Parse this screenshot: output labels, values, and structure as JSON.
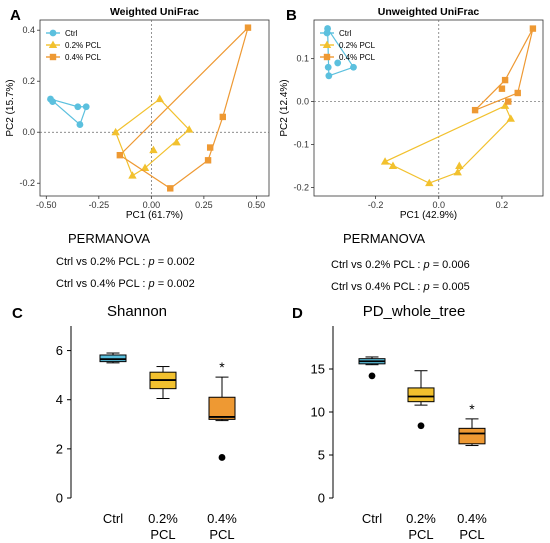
{
  "colors": {
    "Ctrl": "#5bc0de",
    "0.2% PCL": "#f2c12e",
    "0.4% PCL": "#ee9933"
  },
  "chart_data": [
    {
      "panel": "A",
      "type": "scatter",
      "title": "Weighted UniFrac",
      "xlabel": "PC1 (61.7%)",
      "ylabel": "PC2 (15.7%)",
      "xlim": [
        -0.53,
        0.56
      ],
      "ylim": [
        -0.25,
        0.44
      ],
      "xticks": [
        -0.5,
        -0.25,
        0.0,
        0.25,
        0.5
      ],
      "xtick_labels": [
        "-0.50",
        "-0.25",
        "0.00",
        "0.25",
        "0.50"
      ],
      "yticks": [
        -0.2,
        0.0,
        0.2,
        0.4
      ],
      "ytick_labels": [
        "-0.2",
        "0.0",
        "0.2",
        "0.4"
      ],
      "legend": {
        "position": "top-left",
        "entries": [
          "Ctrl",
          "0.2% PCL",
          "0.4% PCL"
        ]
      },
      "series": [
        {
          "name": "Ctrl",
          "marker": "circle",
          "points": [
            [
              -0.48,
              0.13
            ],
            [
              -0.47,
              0.12
            ],
            [
              -0.35,
              0.1
            ],
            [
              -0.31,
              0.1
            ],
            [
              -0.34,
              0.03
            ]
          ],
          "hull": [
            0,
            2,
            3,
            4
          ]
        },
        {
          "name": "0.2% PCL",
          "marker": "triangle",
          "points": [
            [
              -0.17,
              0.0
            ],
            [
              0.04,
              0.13
            ],
            [
              0.18,
              0.01
            ],
            [
              0.12,
              -0.04
            ],
            [
              0.01,
              -0.07
            ],
            [
              -0.03,
              -0.14
            ],
            [
              -0.09,
              -0.17
            ]
          ],
          "hull": [
            0,
            1,
            2,
            5,
            6
          ]
        },
        {
          "name": "0.4% PCL",
          "marker": "square",
          "points": [
            [
              -0.15,
              -0.09
            ],
            [
              0.46,
              0.41
            ],
            [
              0.34,
              0.06
            ],
            [
              0.28,
              -0.06
            ],
            [
              0.27,
              -0.11
            ],
            [
              0.09,
              -0.22
            ]
          ],
          "hull": [
            0,
            1,
            2,
            4,
            5
          ]
        }
      ],
      "stats_title": "PERMANOVA",
      "stats": [
        {
          "text": "Ctrl vs 0.2% PCL : ",
          "p_label": "p",
          "value": " = 0.002"
        },
        {
          "text": "Ctrl vs 0.4% PCL : ",
          "p_label": "p",
          "value": " = 0.002"
        }
      ]
    },
    {
      "panel": "B",
      "type": "scatter",
      "title": "Unweighted UniFrac",
      "xlabel": "PC1 (42.9%)",
      "ylabel": "PC2 (12.4%)",
      "xlim": [
        -0.395,
        0.33
      ],
      "ylim": [
        -0.22,
        0.19
      ],
      "xticks": [
        -0.2,
        0.0,
        0.2
      ],
      "xtick_labels": [
        "-0.2",
        "0.0",
        "0.2"
      ],
      "yticks": [
        -0.2,
        -0.1,
        0.0,
        0.1
      ],
      "ytick_labels": [
        "-0.2",
        "-0.1",
        "0.0",
        "0.1"
      ],
      "legend": {
        "position": "top-left",
        "entries": [
          "Ctrl",
          "0.2% PCL",
          "0.4% PCL"
        ]
      },
      "series": [
        {
          "name": "Ctrl",
          "marker": "circle",
          "points": [
            [
              -0.352,
              0.17
            ],
            [
              -0.32,
              0.09
            ],
            [
              -0.35,
              0.08
            ],
            [
              -0.27,
              0.08
            ],
            [
              -0.348,
              0.06
            ]
          ],
          "hull": [
            0,
            3,
            4
          ]
        },
        {
          "name": "0.2% PCL",
          "marker": "triangle",
          "points": [
            [
              -0.17,
              -0.14
            ],
            [
              -0.145,
              -0.15
            ],
            [
              -0.03,
              -0.19
            ],
            [
              0.065,
              -0.15
            ],
            [
              0.06,
              -0.165
            ],
            [
              0.21,
              -0.01
            ],
            [
              0.228,
              -0.04
            ]
          ],
          "hull": [
            0,
            2,
            4,
            6,
            5
          ]
        },
        {
          "name": "0.4% PCL",
          "marker": "square",
          "points": [
            [
              0.298,
              0.17
            ],
            [
              0.21,
              0.05
            ],
            [
              0.2,
              0.03
            ],
            [
              0.25,
              0.02
            ],
            [
              0.22,
              0.0
            ],
            [
              0.115,
              -0.02
            ]
          ],
          "hull": [
            0,
            3,
            5,
            1
          ]
        }
      ],
      "stats_title": "PERMANOVA",
      "stats": [
        {
          "text": "Ctrl vs 0.2% PCL : ",
          "p_label": "p",
          "value": " = 0.006"
        },
        {
          "text": "Ctrl vs 0.4% PCL : ",
          "p_label": "p",
          "value": " = 0.005"
        }
      ]
    },
    {
      "panel": "C",
      "type": "box",
      "title": "Shannon",
      "ylim": [
        0,
        7
      ],
      "yticks": [
        0,
        2,
        4,
        6
      ],
      "ytick_labels": [
        "0",
        "2",
        "4",
        "6"
      ],
      "categories": [
        [
          "Ctrl"
        ],
        [
          "0.2%",
          "PCL"
        ],
        [
          "0.4%",
          "PCL"
        ]
      ],
      "boxes": [
        {
          "group": "Ctrl",
          "whisker_low": 5.5,
          "q1": 5.55,
          "median": 5.65,
          "q3": 5.82,
          "whisker_high": 5.9,
          "outliers": [],
          "annotation": ""
        },
        {
          "group": "0.2% PCL",
          "whisker_low": 4.05,
          "q1": 4.45,
          "median": 4.8,
          "q3": 5.12,
          "whisker_high": 5.35,
          "outliers": [],
          "annotation": ""
        },
        {
          "group": "0.4% PCL",
          "whisker_low": 3.15,
          "q1": 3.2,
          "median": 3.3,
          "q3": 4.1,
          "whisker_high": 4.92,
          "outliers": [
            1.65
          ],
          "annotation": "*"
        }
      ]
    },
    {
      "panel": "D",
      "type": "box",
      "title": "PD_whole_tree",
      "ylim": [
        0,
        20
      ],
      "yticks": [
        0,
        5,
        10,
        15
      ],
      "ytick_labels": [
        "0",
        "5",
        "10",
        "15"
      ],
      "categories": [
        [
          "Ctrl"
        ],
        [
          "0.2%",
          "PCL"
        ],
        [
          "0.4%",
          "PCL"
        ]
      ],
      "boxes": [
        {
          "group": "Ctrl",
          "whisker_low": 15.5,
          "q1": 15.6,
          "median": 15.9,
          "q3": 16.2,
          "whisker_high": 16.4,
          "outliers": [
            14.2
          ],
          "annotation": ""
        },
        {
          "group": "0.2% PCL",
          "whisker_low": 10.8,
          "q1": 11.2,
          "median": 11.8,
          "q3": 12.8,
          "whisker_high": 14.8,
          "outliers": [
            8.4
          ],
          "annotation": ""
        },
        {
          "group": "0.4% PCL",
          "whisker_low": 6.1,
          "q1": 6.3,
          "median": 7.5,
          "q3": 8.1,
          "whisker_high": 9.2,
          "outliers": [],
          "annotation": "*"
        }
      ]
    }
  ]
}
